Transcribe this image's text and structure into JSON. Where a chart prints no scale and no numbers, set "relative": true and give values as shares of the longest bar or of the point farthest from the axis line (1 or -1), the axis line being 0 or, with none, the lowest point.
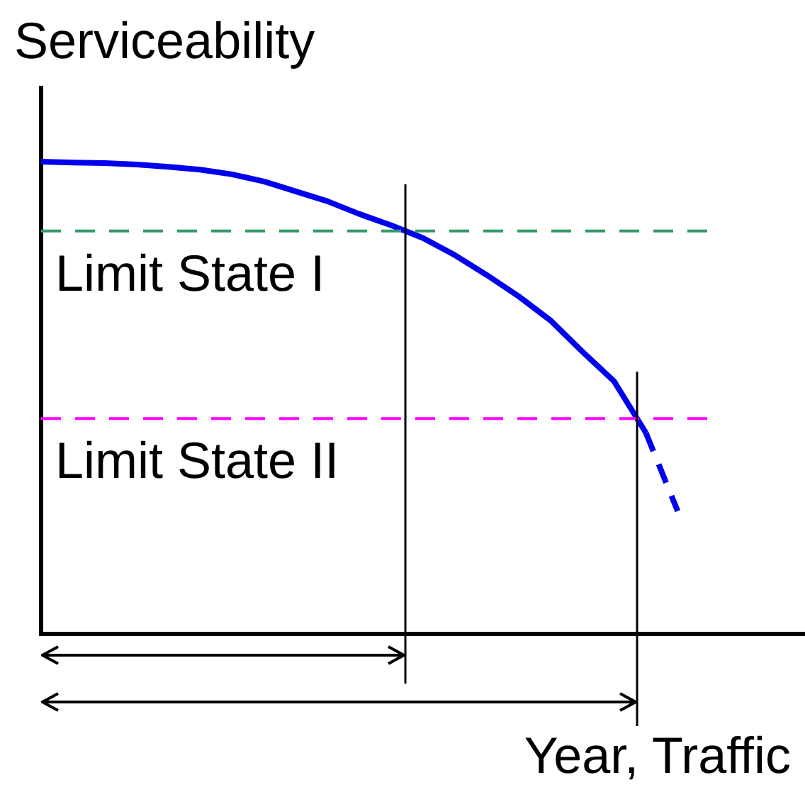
{
  "chart_data": {
    "type": "line",
    "relative": true,
    "xlabel": "Year, Traffic",
    "ylabel": "Serviceability",
    "legend": false,
    "grid": false,
    "marker": "none",
    "categories": [
      null,
      null,
      null,
      null,
      null,
      null,
      null,
      null,
      null,
      null,
      null,
      null,
      null,
      null,
      null,
      null,
      null,
      null,
      null,
      null,
      null,
      null,
      null,
      null,
      null
    ],
    "series": [
      {
        "color": "#0000ee",
        "line_style": "solid",
        "values": [
          1,
          0.998,
          0.997,
          0.994,
          0.989,
          0.983,
          0.973,
          0.958,
          0.937,
          0.916,
          0.889,
          0.865,
          0.838,
          0.802,
          0.76,
          0.715,
          0.664,
          0.598,
          0.535,
          0.426,
          null,
          null,
          null,
          null,
          null
        ]
      },
      {
        "color": "#0000ee",
        "line_style": "dashed",
        "values": [
          null,
          null,
          null,
          null,
          null,
          null,
          null,
          null,
          null,
          null,
          null,
          null,
          null,
          null,
          null,
          null,
          null,
          null,
          null,
          0.426,
          0.26,
          null,
          null,
          null,
          null
        ]
      }
    ],
    "ref_lines": [
      {
        "axis": "y",
        "value": 0.853,
        "label": "Limit State I",
        "color": "#339966",
        "line_style": "dashed"
      },
      {
        "axis": "y",
        "value": 0.456,
        "label": "Limit State II",
        "color": "#ff00ff",
        "line_style": "dashed"
      }
    ]
  }
}
